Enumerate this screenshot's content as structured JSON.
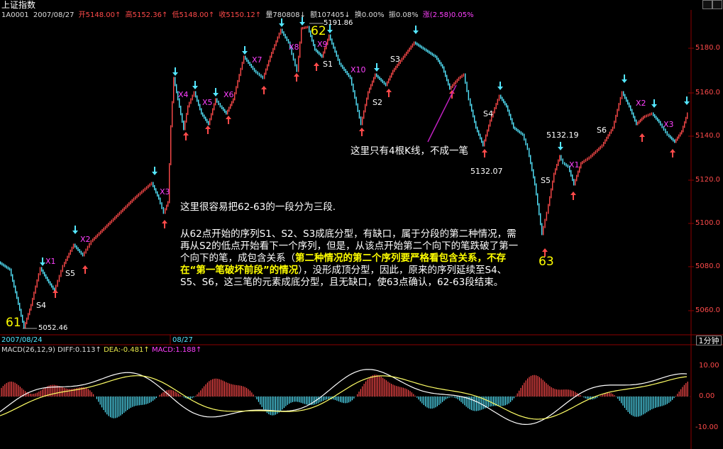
{
  "window": {
    "title": "上证指数"
  },
  "info": {
    "code": "1A0001",
    "date": "2007/08/27",
    "open": "开5148.00↑",
    "high": "高5152.36↑",
    "low": "低5148.00↑",
    "close": "收5150.12↑",
    "volume": "量780808↓",
    "amount": "额107405↓",
    "turnover": "换0.00%",
    "amplitude": "振0.08%",
    "change": "涨(2.58)0.05%"
  },
  "price_axis": [
    "5180.0",
    "5160.0",
    "5140.0",
    "5120.0",
    "5100.0",
    "5080.0",
    "5060.0"
  ],
  "date_labels": [
    "2007/08/24",
    "08/27"
  ],
  "period": "1分钟",
  "macd": {
    "label": "MACD(26,12,9)",
    "diff": "DIFF:0.113↑",
    "dea": "DEA:-0.481↑",
    "macd": "MACD:1.188↑",
    "axis": [
      "10.00",
      "0.00",
      "-10.00"
    ]
  },
  "markers": {
    "m61": "61",
    "m62": "62",
    "m63": "63",
    "p5052": "5052.46",
    "p5191": "5191.86",
    "p5132a": "5132.07",
    "p5132b": "5132.19"
  },
  "segment_labels": {
    "x1a": "X1",
    "x2a": "X2",
    "x3a": "X3",
    "s4a": "S4",
    "s5a": "S5",
    "x4": "X4",
    "x5": "X5",
    "x6": "X6",
    "x7": "X7",
    "x8": "X8",
    "x9": "X9",
    "x10": "X10",
    "s1": "S1",
    "s2": "S2",
    "s3": "S3",
    "s4b": "S4",
    "s5b": "S5",
    "s6": "S6",
    "x1b": "X1",
    "x2b": "X2",
    "x3b": "X3"
  },
  "annotations": {
    "note_top": "这里只有4根K线，不成一笔",
    "note_mid": "这里很容易把62-63的一段分为三段.",
    "para1": "从62点开始的序列S1、S2、S3成底分型，有缺口，属于分段的第二种情况，需再从S2的低点开始看下一个序列，但是，从该点开始第二个向下的笔跌破了第一个向下的笔，成包含关系（",
    "para_bold": "第二种情况的第二个序列要严格看包含关系，不存在“第一笔破坏前段”的情况",
    "para2": "），没形成顶分型，因此，原来的序列延续至S4、S5、S6，这三笔的元素成底分型，且无缺口，使63点确认，62-63段结束。"
  },
  "colors": {
    "up": "#ff4a4a",
    "down": "#54e6ff",
    "label": "#ff40ff",
    "grid": "#8b0000"
  }
}
